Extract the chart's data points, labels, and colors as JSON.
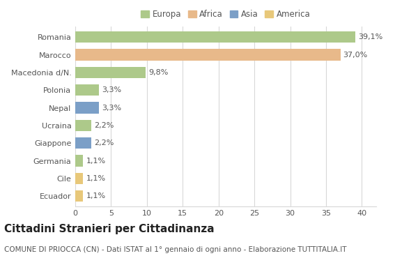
{
  "categories": [
    "Romania",
    "Marocco",
    "Macedonia d/N.",
    "Polonia",
    "Nepal",
    "Ucraina",
    "Giappone",
    "Germania",
    "Cile",
    "Ecuador"
  ],
  "values": [
    39.1,
    37.0,
    9.8,
    3.3,
    3.3,
    2.2,
    2.2,
    1.1,
    1.1,
    1.1
  ],
  "labels": [
    "39,1%",
    "37,0%",
    "9,8%",
    "3,3%",
    "3,3%",
    "2,2%",
    "2,2%",
    "1,1%",
    "1,1%",
    "1,1%"
  ],
  "colors": [
    "#adc98a",
    "#e8b98a",
    "#adc98a",
    "#adc98a",
    "#7b9fc7",
    "#adc98a",
    "#7b9fc7",
    "#adc98a",
    "#e8c87a",
    "#e8c87a"
  ],
  "legend_labels": [
    "Europa",
    "Africa",
    "Asia",
    "America"
  ],
  "legend_colors": [
    "#adc98a",
    "#e8b98a",
    "#7b9fc7",
    "#e8c87a"
  ],
  "title": "Cittadini Stranieri per Cittadinanza",
  "subtitle": "COMUNE DI PRIOCCA (CN) - Dati ISTAT al 1° gennaio di ogni anno - Elaborazione TUTTITALIA.IT",
  "xlim": [
    0,
    42
  ],
  "xticks": [
    0,
    5,
    10,
    15,
    20,
    25,
    30,
    35,
    40
  ],
  "background_color": "#ffffff",
  "grid_color": "#d8d8d8",
  "bar_height": 0.65,
  "title_fontsize": 11,
  "subtitle_fontsize": 7.5,
  "label_fontsize": 8,
  "tick_fontsize": 8,
  "legend_fontsize": 8.5
}
